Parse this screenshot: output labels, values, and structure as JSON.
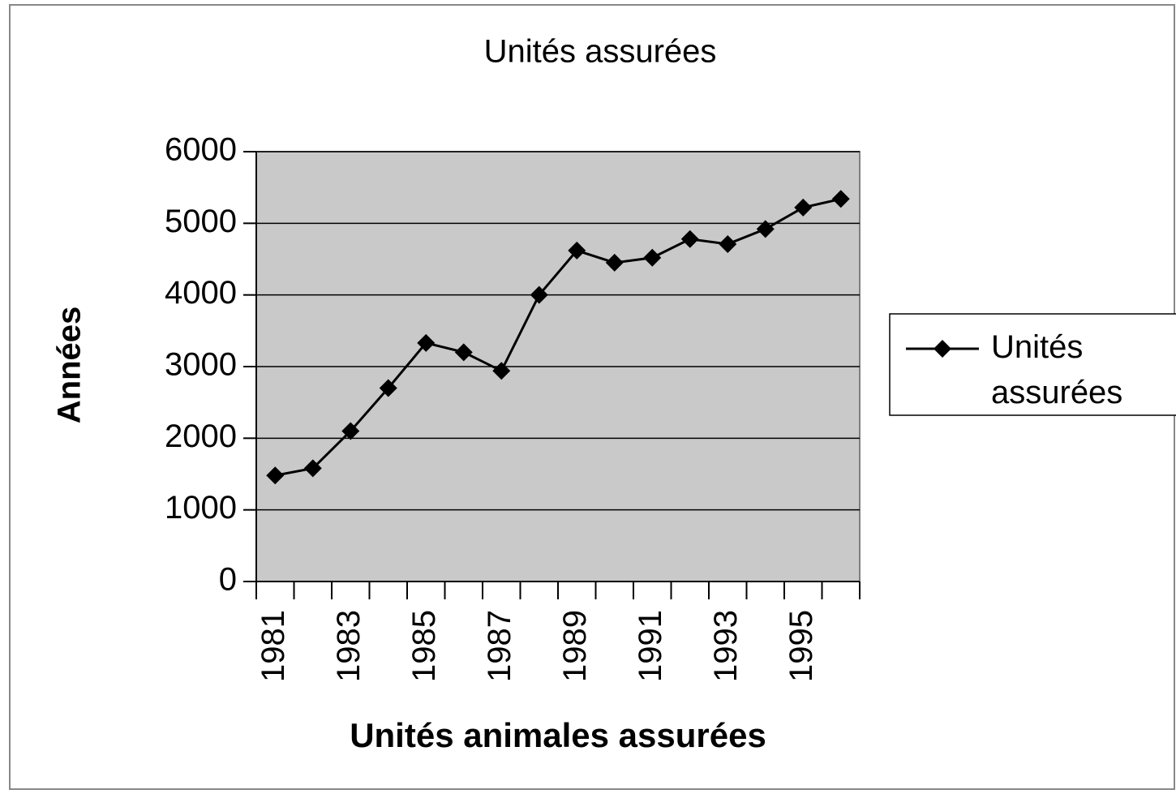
{
  "chart_data": {
    "type": "line",
    "title": "Unités assurées",
    "x_label": "Unités animales assurées",
    "y_label": "Années",
    "categories": [
      "1981",
      null,
      "1983",
      null,
      "1985",
      null,
      "1987",
      null,
      "1989",
      null,
      "1991",
      null,
      "1993",
      null,
      "1995",
      null
    ],
    "series": [
      {
        "name": "Unités assurées",
        "color": "#000000",
        "values": [
          1480,
          1580,
          2100,
          2700,
          3330,
          3200,
          2940,
          4000,
          4620,
          4450,
          4520,
          4780,
          4710,
          4920,
          5220,
          5340
        ]
      }
    ],
    "ylim": [
      0,
      6000
    ],
    "yticks": [
      0,
      1000,
      2000,
      3000,
      4000,
      5000,
      6000
    ],
    "grid": true,
    "legend": "right"
  }
}
